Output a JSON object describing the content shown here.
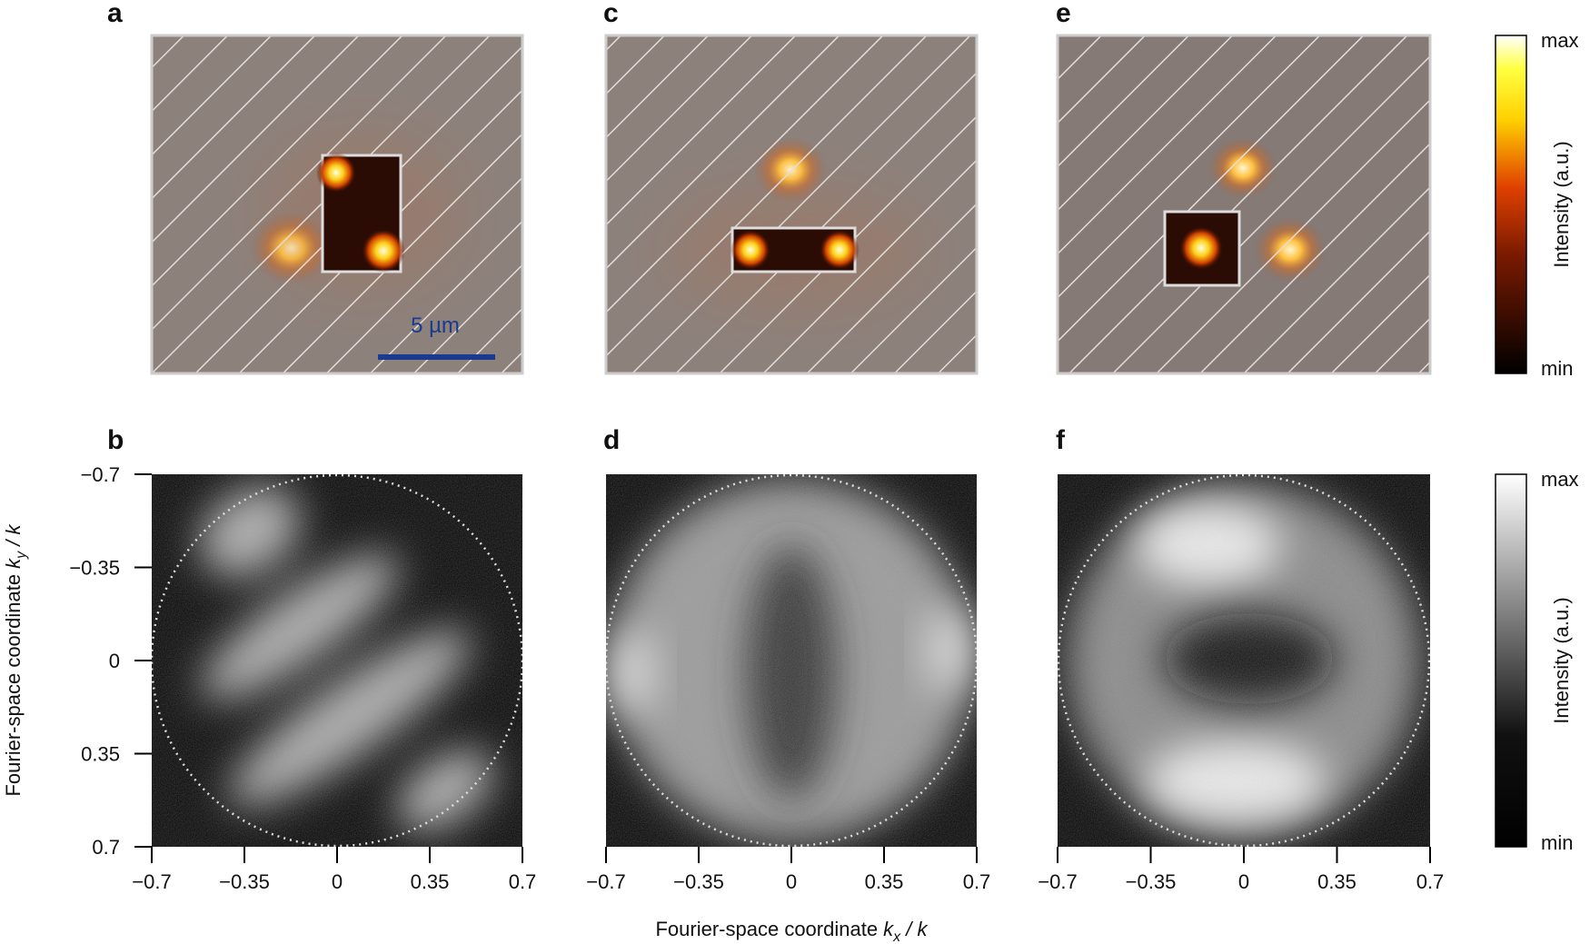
{
  "panels": [
    {
      "label": "a"
    },
    {
      "label": "b"
    },
    {
      "label": "c"
    },
    {
      "label": "d"
    },
    {
      "label": "e"
    },
    {
      "label": "f"
    }
  ],
  "scale_bar": "5 µm",
  "colorbars": [
    {
      "label": "Intensity (a.u.)",
      "max": "max",
      "min": "min"
    },
    {
      "label": "Intensity (a.u.)",
      "max": "max",
      "min": "min"
    }
  ],
  "axes": {
    "xlabel": {
      "text": "Fourier-space coordinate ",
      "var": "k",
      "sub": "x",
      "tail": " / k"
    },
    "ylabel": {
      "text": "Fourier-space coordinate ",
      "var": "k",
      "sub": "y",
      "tail": " / k"
    },
    "xlim": [
      -0.7,
      0.7
    ],
    "ylim": [
      -0.7,
      0.7
    ],
    "xticks": [
      {
        "value": -0.7,
        "label": "−0.7"
      },
      {
        "value": -0.35,
        "label": "−0.35"
      },
      0,
      0.35,
      0.7
    ],
    "yticks": [
      {
        "value": -0.7,
        "label": "−0.7"
      },
      {
        "value": -0.35,
        "label": "−0.35"
      },
      0,
      0.35,
      0.7
    ]
  }
}
